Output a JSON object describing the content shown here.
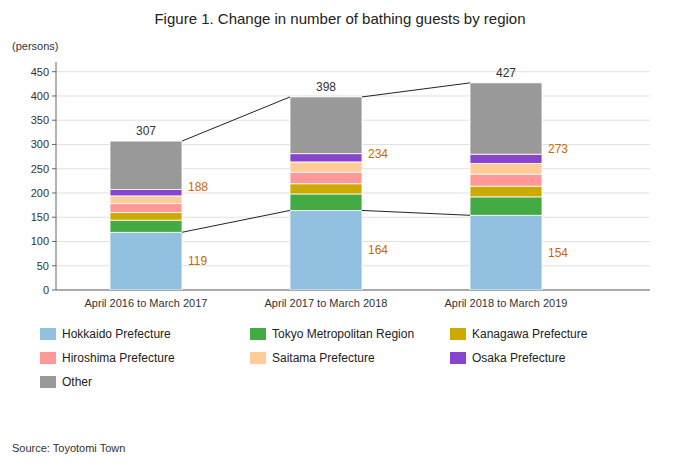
{
  "chart_data": {
    "type": "bar",
    "stacked": true,
    "title": "Figure 1. Change in number of bathing guests by region",
    "ylabel": "(persons)",
    "source": "Source: Toyotomi Town",
    "categories": [
      "April 2016 to March 2017",
      "April 2017 to March 2018",
      "April 2018 to March 2019"
    ],
    "series": [
      {
        "name": "Hokkaido Prefecture",
        "color": "#92C0E0",
        "values": [
          119,
          164,
          154
        ],
        "data_labels": true
      },
      {
        "name": "Tokyo Metropolitan Region",
        "color": "#44AA44",
        "values": [
          25,
          34,
          38
        ]
      },
      {
        "name": "Kanagawa Prefecture",
        "color": "#CCAA00",
        "values": [
          16,
          21,
          22
        ]
      },
      {
        "name": "Hiroshima Prefecture",
        "color": "#FF9999",
        "values": [
          18,
          24,
          25
        ]
      },
      {
        "name": "Saitama Prefecture",
        "color": "#FFCC99",
        "values": [
          16,
          21,
          22
        ]
      },
      {
        "name": "Osaka Prefecture",
        "color": "#8844CC",
        "values": [
          13,
          17,
          19
        ]
      },
      {
        "name": "Other",
        "color": "#999999",
        "values": [
          100,
          117,
          147
        ]
      }
    ],
    "totals": [
      307,
      398,
      427
    ],
    "upper_subtotals": [
      188,
      234,
      273
    ],
    "ylim": [
      0,
      470
    ],
    "yticks": [
      0,
      50,
      100,
      150,
      200,
      250,
      300,
      350,
      400,
      450
    ],
    "grid": true,
    "legend": "bottom"
  }
}
